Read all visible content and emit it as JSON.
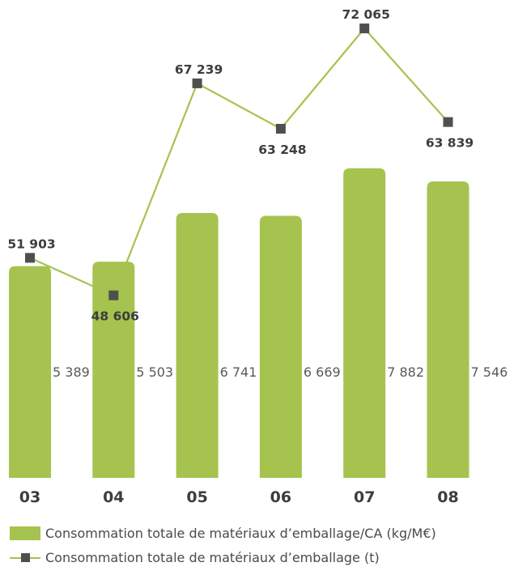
{
  "chart_data": {
    "type": "bar",
    "categories": [
      "03",
      "04",
      "05",
      "06",
      "07",
      "08"
    ],
    "series": [
      {
        "name": "Consommation totale de matériaux d’emballage/CA (kg/M€)",
        "type": "bar",
        "values": [
          5389,
          5503,
          6741,
          6669,
          7882,
          7546
        ],
        "labels": [
          "5 389",
          "5 503",
          "6 741",
          "6 669",
          "7 882",
          "7 546"
        ],
        "color": "#a5c34e"
      },
      {
        "name": "Consommation totale de matériaux d’emballage (t)",
        "type": "line",
        "values": [
          51903,
          48606,
          67239,
          63248,
          72065,
          63839
        ],
        "labels": [
          "51 903",
          "48 606",
          "67 239",
          "63 248",
          "72 065",
          "63 839"
        ],
        "color": "#a5c34e",
        "marker_color": "#4f4f4f"
      }
    ],
    "legend_position": "bottom-left",
    "grid": false
  }
}
